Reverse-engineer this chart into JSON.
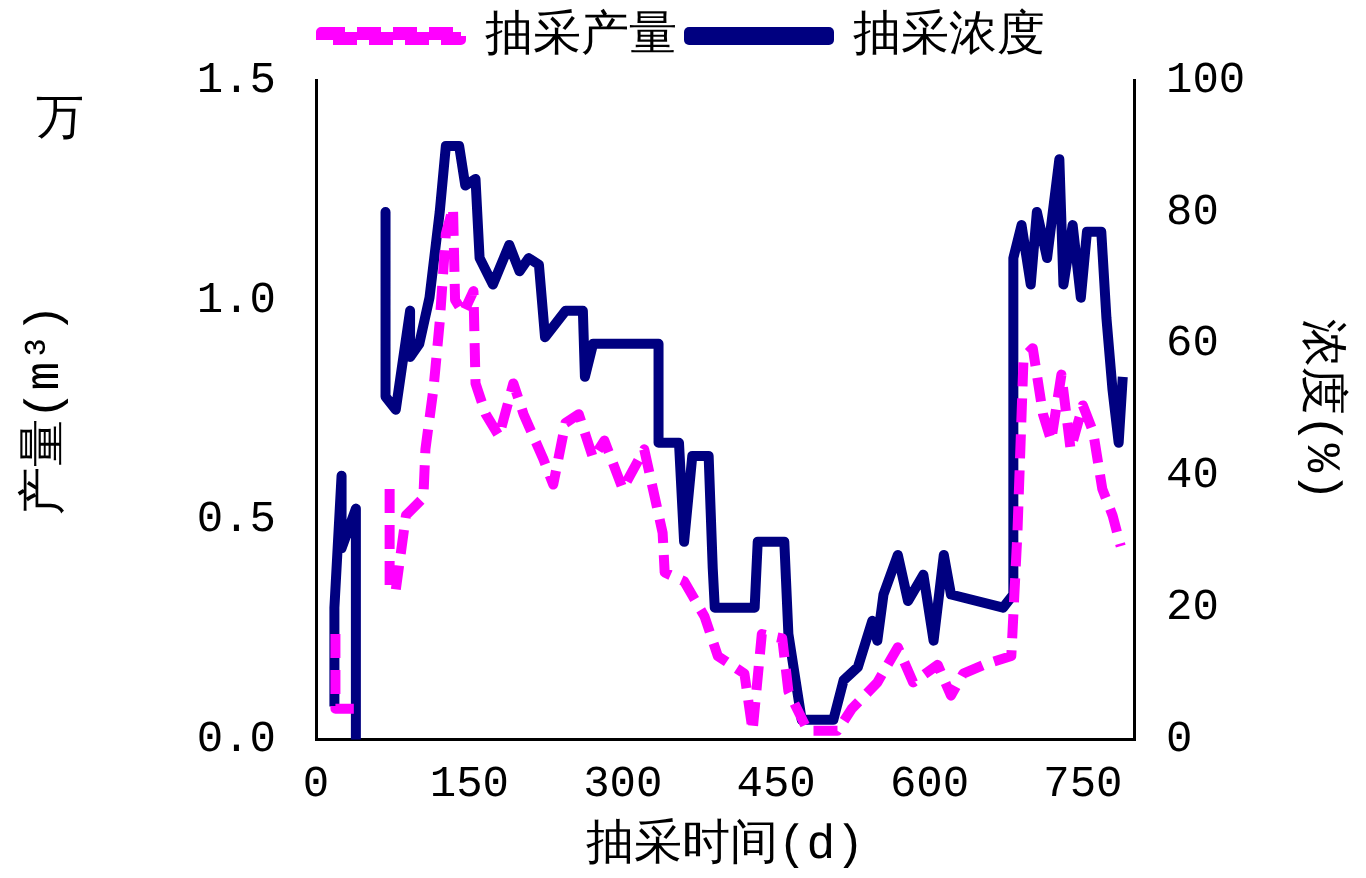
{
  "chart_data": {
    "type": "line",
    "xlabel": "抽采时间(d)",
    "ylabel": "产量(m³)",
    "y2label": "浓度(%)",
    "annotations": [
      "万"
    ],
    "xlim": [
      0,
      800
    ],
    "xticks": [
      0,
      150,
      300,
      450,
      600,
      750
    ],
    "ylim": [
      0,
      1.5
    ],
    "yticks": [
      {
        "value": 0,
        "label": "0.0"
      },
      {
        "value": 0.5,
        "label": "0.5"
      },
      {
        "value": 1,
        "label": "1.0"
      },
      {
        "value": 1.5,
        "label": "1.5"
      }
    ],
    "y2lim": [
      0,
      100
    ],
    "y2ticks": [
      0,
      20,
      40,
      60,
      80,
      100
    ],
    "legend": "top",
    "grid": false,
    "marker": "none",
    "series": [
      {
        "name": "抽采产量",
        "color": "#ff00ff",
        "line_style": "dashed",
        "x": [
          19,
          19,
          37,
          50,
          72,
          72,
          78,
          88,
          105,
          107,
          115,
          121,
          127,
          134,
          136,
          144,
          154,
          156,
          166,
          179,
          193,
          203,
          222,
          232,
          244,
          257,
          271,
          282,
          300,
          321,
          339,
          341,
          360,
          380,
          393,
          419,
          427,
          436,
          456,
          462,
          481,
          510,
          524,
          549,
          569,
          584,
          608,
          621,
          633,
          653,
          680,
          686,
          692,
          701,
          711,
          719,
          729,
          738,
          750,
          760,
          769,
          779,
          787
        ],
        "values": [
          0.24,
          0.07,
          0.07,
          null,
          0.57,
          0.34,
          0.34,
          0.51,
          0.55,
          0.66,
          0.8,
          0.95,
          1.15,
          1.21,
          1.0,
          0.97,
          1.02,
          0.81,
          0.74,
          0.69,
          0.81,
          0.74,
          0.64,
          0.58,
          0.72,
          0.74,
          0.64,
          0.68,
          0.57,
          0.66,
          0.47,
          0.38,
          0.36,
          0.28,
          0.19,
          0.15,
          0.02,
          0.24,
          0.23,
          0.11,
          0.02,
          0.02,
          0.07,
          0.13,
          0.21,
          0.13,
          0.17,
          0.1,
          0.15,
          0.17,
          0.19,
          0.47,
          0.87,
          0.89,
          0.74,
          0.68,
          0.83,
          0.66,
          0.76,
          0.7,
          0.57,
          0.51,
          0.44
        ]
      },
      {
        "name": "抽采浓度",
        "color": "#000080",
        "line_style": "solid",
        "axis": "y2",
        "x": [
          18,
          18,
          25,
          25,
          39,
          39,
          50,
          68,
          68,
          78,
          92,
          92,
          101,
          111,
          121,
          127,
          140,
          146,
          156,
          160,
          173,
          189,
          199,
          208,
          218,
          224,
          244,
          261,
          263,
          271,
          335,
          335,
          355,
          360,
          368,
          384,
          388,
          390,
          429,
          432,
          458,
          462,
          475,
          506,
          516,
          530,
          544,
          549,
          555,
          569,
          579,
          594,
          604,
          614,
          621,
          672,
          682,
          682,
          690,
          699,
          705,
          715,
          727,
          731,
          740,
          748,
          754,
          768,
          773,
          779,
          785,
          789
        ],
        "values": [
          5,
          20,
          40,
          29,
          35,
          0,
          null,
          80,
          52,
          50,
          65,
          58,
          60,
          67,
          80,
          90,
          90,
          84,
          85,
          73,
          69,
          75,
          71,
          73,
          72,
          61,
          65,
          65,
          55,
          60,
          60,
          45,
          45,
          30,
          43,
          43,
          26,
          20,
          20,
          30,
          30,
          16,
          3,
          3,
          9,
          11,
          18,
          15,
          22,
          28,
          21,
          25,
          15,
          28,
          22,
          20,
          22,
          73,
          78,
          69,
          80,
          73,
          88,
          69,
          78,
          67,
          77,
          77,
          64,
          53,
          45,
          55
        ]
      }
    ]
  }
}
